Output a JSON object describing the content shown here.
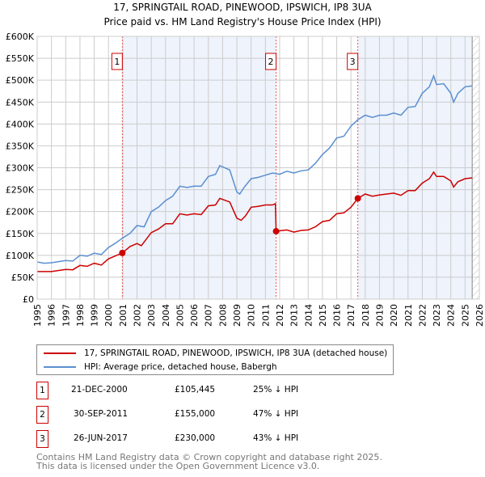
{
  "chart_data": {
    "type": "line",
    "title": "17, SPRINGTAIL ROAD, PINEWOOD, IPSWICH, IP8 3UA",
    "subtitle": "Price paid vs. HM Land Registry's House Price Index (HPI)",
    "xlim": [
      1995,
      2026
    ],
    "ylim": [
      0,
      600000
    ],
    "x_ticks": [
      "1995",
      "1996",
      "1997",
      "1998",
      "1999",
      "2000",
      "2001",
      "2002",
      "2003",
      "2004",
      "2005",
      "2006",
      "2007",
      "2008",
      "2009",
      "2010",
      "2011",
      "2012",
      "2013",
      "2014",
      "2015",
      "2016",
      "2017",
      "2018",
      "2019",
      "2020",
      "2021",
      "2022",
      "2023",
      "2024",
      "2025",
      "2026"
    ],
    "y_ticks": [
      {
        "v": 0,
        "l": "£0"
      },
      {
        "v": 50000,
        "l": "£50K"
      },
      {
        "v": 100000,
        "l": "£100K"
      },
      {
        "v": 150000,
        "l": "£150K"
      },
      {
        "v": 200000,
        "l": "£200K"
      },
      {
        "v": 250000,
        "l": "£250K"
      },
      {
        "v": 300000,
        "l": "£300K"
      },
      {
        "v": 350000,
        "l": "£350K"
      },
      {
        "v": 400000,
        "l": "£400K"
      },
      {
        "v": 450000,
        "l": "£450K"
      },
      {
        "v": 500000,
        "l": "£500K"
      },
      {
        "v": 550000,
        "l": "£550K"
      },
      {
        "v": 600000,
        "l": "£600K"
      }
    ],
    "grid": true,
    "series": [
      {
        "name": "17, SPRINGTAIL ROAD, PINEWOOD, IPSWICH, IP8 3UA (detached house)",
        "color": "#cc0000",
        "x": [
          1995,
          1996,
          1997,
          1997.5,
          1998,
          1998.5,
          1999,
          1999.5,
          2000,
          2000.97,
          2001.5,
          2002,
          2002.3,
          2003,
          2003.5,
          2004,
          2004.5,
          2005,
          2005.5,
          2006,
          2006.5,
          2007,
          2007.5,
          2007.8,
          2008.5,
          2009,
          2009.3,
          2009.6,
          2010,
          2010.5,
          2011,
          2011.5,
          2011.7,
          2011.75,
          2012.5,
          2013,
          2013.5,
          2014,
          2014.5,
          2015,
          2015.5,
          2016,
          2016.5,
          2017,
          2017.48,
          2018,
          2018.5,
          2019,
          2019.5,
          2020,
          2020.5,
          2021,
          2021.5,
          2022,
          2022.5,
          2022.8,
          2023,
          2023.5,
          2024,
          2024.2,
          2024.5,
          2025,
          2025.5
        ],
        "y": [
          63,
          63,
          68,
          67,
          77,
          75,
          82,
          78,
          92,
          105.4,
          120,
          127,
          122,
          152,
          160,
          172,
          172,
          195,
          192,
          195,
          193,
          213,
          215,
          230,
          222,
          185,
          180,
          190,
          210,
          212,
          215,
          215,
          218,
          155,
          158,
          153,
          157,
          158,
          165,
          177,
          180,
          195,
          197,
          210,
          230,
          240,
          235,
          238,
          240,
          242,
          237,
          248,
          248,
          265,
          275,
          290,
          280,
          280,
          270,
          256,
          268,
          275,
          277
        ]
      },
      {
        "name": "HPI: Average price, detached house, Babergh",
        "color": "#5b8fd0",
        "x": [
          1995,
          1995.5,
          1996,
          1997,
          1997.5,
          1998,
          1998.5,
          1999,
          1999.5,
          2000,
          2000.5,
          2001,
          2001.5,
          2002,
          2002.5,
          2003,
          2003.5,
          2004,
          2004.5,
          2005,
          2005.5,
          2006,
          2006.5,
          2007,
          2007.5,
          2007.8,
          2008.5,
          2009,
          2009.2,
          2009.5,
          2010,
          2010.5,
          2011,
          2011.5,
          2012,
          2012.5,
          2013,
          2013.5,
          2014,
          2014.5,
          2015,
          2015.5,
          2016,
          2016.5,
          2017,
          2017.5,
          2018,
          2018.5,
          2019,
          2019.5,
          2020,
          2020.5,
          2021,
          2021.5,
          2022,
          2022.5,
          2022.8,
          2023,
          2023.5,
          2024,
          2024.2,
          2024.5,
          2025,
          2025.5
        ],
        "y": [
          85,
          82,
          83,
          88,
          87,
          100,
          98,
          105,
          102,
          118,
          128,
          140,
          150,
          168,
          165,
          200,
          210,
          225,
          235,
          258,
          255,
          258,
          258,
          280,
          285,
          305,
          295,
          245,
          240,
          255,
          275,
          278,
          283,
          288,
          285,
          292,
          288,
          293,
          295,
          310,
          330,
          345,
          368,
          372,
          395,
          410,
          420,
          415,
          420,
          420,
          425,
          420,
          438,
          440,
          470,
          485,
          510,
          490,
          492,
          470,
          450,
          470,
          485,
          487
        ]
      }
    ],
    "y_units": "thousand GBP",
    "sales": [
      {
        "n": "1",
        "x": 2000.97,
        "y": 105.445,
        "date": "21-DEC-2000",
        "price": "£105,445",
        "hpi": "25% ↓ HPI"
      },
      {
        "n": "2",
        "x": 2011.75,
        "y": 155,
        "date": "30-SEP-2011",
        "price": "£155,000",
        "hpi": "47% ↓ HPI"
      },
      {
        "n": "3",
        "x": 2017.48,
        "y": 230,
        "date": "26-JUN-2017",
        "price": "£230,000",
        "hpi": "43% ↓ HPI"
      }
    ],
    "projection_start": 2025.5
  },
  "footer": {
    "line1": "Contains HM Land Registry data © Crown copyright and database right 2025.",
    "line2": "This data is licensed under the Open Government Licence v3.0."
  }
}
